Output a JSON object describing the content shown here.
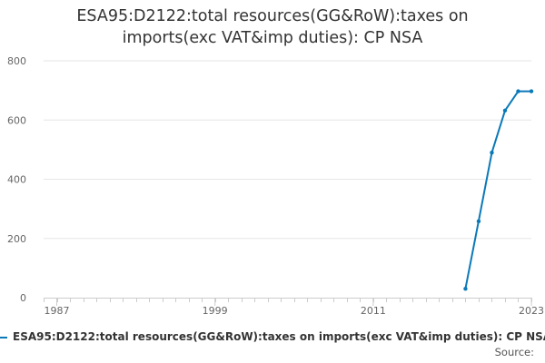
{
  "chart_data": {
    "type": "line",
    "title_lines": [
      "ESA95:D2122:total resources(GG&RoW):taxes on",
      "imports(exc VAT&imp duties): CP NSA"
    ],
    "x_ticks": [
      "1987",
      "1999",
      "2011",
      "2023"
    ],
    "y_ticks": [
      "0",
      "200",
      "400",
      "600",
      "800"
    ],
    "xlim": [
      1986,
      2023
    ],
    "ylim": [
      0,
      800
    ],
    "grid": true,
    "legend_position": "bottom",
    "series": [
      {
        "name": "ESA95:D2122:total resources(GG&RoW):taxes on imports(exc VAT&imp duties): CP NSA",
        "color": "#0b79b8",
        "x": [
          2018,
          2019,
          2020,
          2021,
          2022,
          2023
        ],
        "values": [
          30,
          258,
          490,
          632,
          697,
          697
        ]
      }
    ]
  },
  "source_label": "Source:"
}
